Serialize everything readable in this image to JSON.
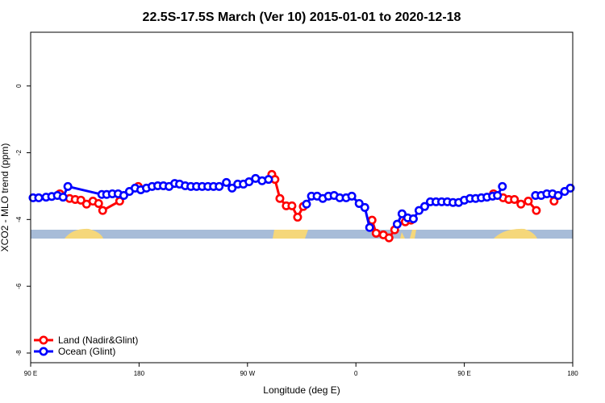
{
  "chart_data": {
    "type": "line",
    "title": "22.5S-17.5S March (Ver 10)   2015-01-01 to 2020-12-18",
    "xlabel": "Longitude (deg E)",
    "ylabel": "XCO2 - MLO trend (ppm)",
    "xlim": [
      -270,
      180
    ],
    "ylim": [
      -8.29,
      1.61
    ],
    "xticks": [
      {
        "value": -270,
        "label": "90 E"
      },
      {
        "value": -180,
        "label": "180"
      },
      {
        "value": -90,
        "label": "90 W"
      },
      0,
      {
        "value": 90,
        "label": "90 E"
      },
      180
    ],
    "yticks": [
      0,
      -2,
      -4,
      -6,
      -8
    ],
    "legend": "bottom-left",
    "series": [
      {
        "name": "Land (Nadir&Glint)",
        "color": "#ff0000",
        "x": [
          -245.8,
          -237.7,
          -233.0,
          -228.3,
          -223.6,
          -218.3,
          -213.6,
          -210.2,
          -196.1,
          null,
          -180.7,
          null,
          -69.8,
          -67.2,
          -63.1,
          -57.8,
          -53.1,
          -48.4,
          -43.7,
          null,
          13.4,
          16.8,
          22.8,
          27.5,
          32.2,
          null,
          41.0,
          45.7,
          null,
          114.2,
          122.2,
          126.9,
          131.6,
          137.0,
          143.1,
          149.8,
          null,
          164.5
        ],
        "values": [
          -3.23,
          -3.37,
          -3.4,
          -3.42,
          -3.54,
          -3.45,
          -3.52,
          -3.73,
          -3.45,
          null,
          -3.01,
          null,
          -2.65,
          -2.8,
          -3.37,
          -3.59,
          -3.59,
          -3.93,
          -3.61,
          null,
          -4.02,
          -4.41,
          -4.46,
          -4.55,
          -4.31,
          null,
          -4.07,
          -4.02,
          null,
          -3.23,
          -3.35,
          -3.4,
          -3.4,
          -3.54,
          -3.45,
          -3.73,
          null,
          -3.45
        ]
      },
      {
        "name": "Ocean (Glint)",
        "color": "#0000ff",
        "x": [
          -268.0,
          -263.3,
          -257.2,
          -252.5,
          -247.8,
          -243.1,
          -239.1,
          -210.9,
          -206.9,
          -202.2,
          -197.4,
          -192.7,
          -188.0,
          -183.3,
          -178.6,
          -173.9,
          -169.2,
          -164.5,
          -159.8,
          -155.1,
          -150.4,
          -146.4,
          -141.7,
          -137.0,
          -132.3,
          -127.6,
          -122.9,
          -118.2,
          -113.5,
          -107.5,
          -102.8,
          -98.1,
          -93.4,
          -88.7,
          -83.3,
          -77.9,
          -72.5,
          null,
          -41.0,
          -36.9,
          -32.2,
          -27.5,
          -22.8,
          -18.1,
          -13.4,
          -8.1,
          -3.4,
          2.7,
          7.4,
          11.4,
          null,
          34.3,
          38.3,
          43.0,
          47.7,
          52.4,
          57.1,
          61.8,
          66.5,
          71.2,
          75.9,
          80.6,
          85.3,
          90.0,
          94.7,
          99.4,
          104.1,
          108.8,
          113.5,
          117.5,
          121.6,
          null,
          149.1,
          153.8,
          158.5,
          163.2,
          167.9,
          173.3,
          178.0
        ],
        "values": [
          -3.35,
          -3.35,
          -3.33,
          -3.31,
          -3.28,
          -3.33,
          -3.01,
          -3.25,
          -3.25,
          -3.23,
          -3.23,
          -3.28,
          -3.16,
          -3.06,
          -3.11,
          -3.06,
          -3.01,
          -2.99,
          -2.99,
          -3.01,
          -2.92,
          -2.94,
          -2.99,
          -3.01,
          -3.01,
          -3.01,
          -3.01,
          -3.01,
          -3.01,
          -2.89,
          -3.06,
          -2.94,
          -2.94,
          -2.87,
          -2.77,
          -2.84,
          -2.8,
          null,
          -3.54,
          -3.3,
          -3.3,
          -3.37,
          -3.3,
          -3.28,
          -3.35,
          -3.35,
          -3.3,
          -3.52,
          -3.64,
          -4.24,
          null,
          -4.14,
          -3.83,
          -3.95,
          -3.98,
          -3.73,
          -3.61,
          -3.47,
          -3.47,
          -3.47,
          -3.47,
          -3.49,
          -3.49,
          -3.42,
          -3.37,
          -3.37,
          -3.35,
          -3.33,
          -3.3,
          -3.28,
          -3.01,
          null,
          -3.28,
          -3.28,
          -3.23,
          -3.23,
          -3.28,
          -3.16,
          -3.06
        ]
      }
    ]
  }
}
